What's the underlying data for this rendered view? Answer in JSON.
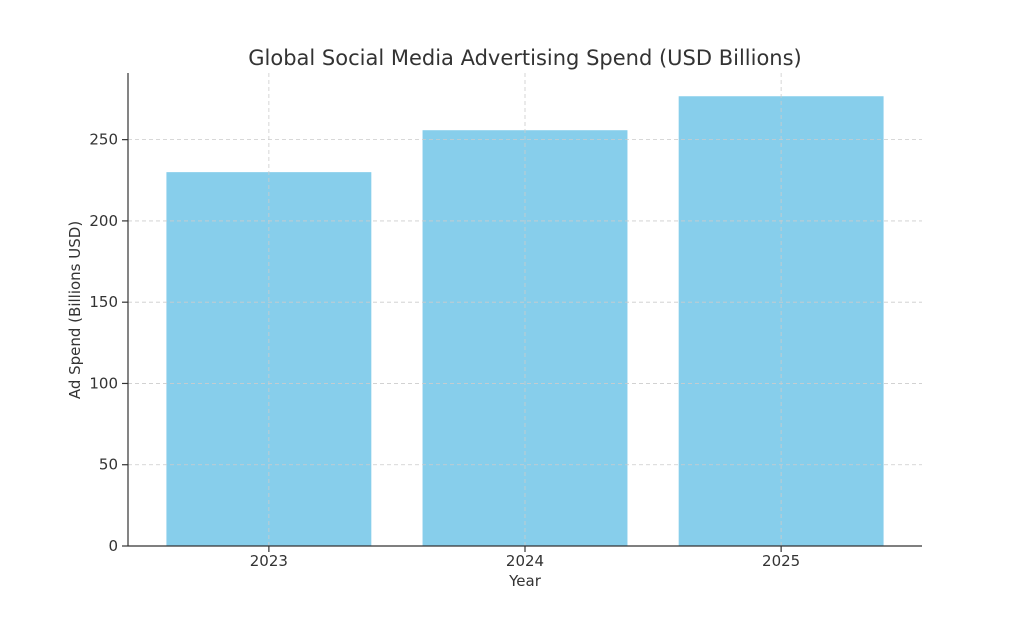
{
  "chart_data": {
    "type": "bar",
    "title": "Global Social Media Advertising Spend (USD Billions)",
    "xlabel": "Year",
    "ylabel": "Ad Spend (Billions USD)",
    "categories": [
      "2023",
      "2024",
      "2025"
    ],
    "values": [
      230,
      255.8,
      276.7
    ],
    "ylim": [
      0,
      291
    ],
    "yticks": [
      0,
      50,
      100,
      150,
      200,
      250
    ],
    "grid": true,
    "bar_color": "#87CEEB"
  }
}
